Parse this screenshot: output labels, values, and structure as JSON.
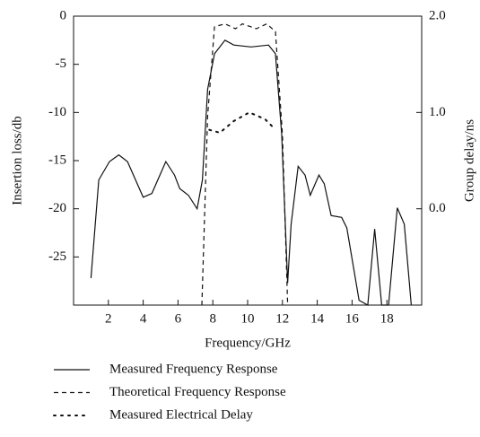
{
  "chart_data": {
    "type": "line",
    "xlabel": "Frequency/GHz",
    "ylabel": "Insertion loss/db",
    "y2label": "Group delay/ns",
    "xlim": [
      0,
      20
    ],
    "xticks": [
      2,
      4,
      6,
      8,
      10,
      12,
      14,
      16,
      18
    ],
    "ylim": [
      -30,
      0
    ],
    "yticks": [
      0,
      -5,
      -10,
      -15,
      -20,
      -25
    ],
    "y2lim": [
      -1,
      2
    ],
    "y2ticks": [
      {
        "value": 0,
        "label": "0.0"
      },
      {
        "value": 1,
        "label": "1.0"
      },
      {
        "value": 2,
        "label": "2.0"
      }
    ],
    "series": [
      {
        "name": "Measured Frequency Response",
        "color": "#111111",
        "line_style": "solid",
        "x": [
          1.0,
          1.45,
          2.06,
          2.6,
          3.1,
          4.0,
          4.5,
          5.3,
          5.8,
          6.1,
          6.6,
          7.1,
          7.4,
          7.7,
          8.1,
          8.7,
          9.2,
          10.2,
          11.2,
          11.6,
          11.96,
          12.3,
          12.5,
          12.9,
          13.3,
          13.6,
          14.1,
          14.4,
          14.8,
          15.4,
          15.7,
          16.4,
          16.9,
          17.3,
          17.7,
          18.1,
          18.6,
          19.0,
          19.4
        ],
        "values": [
          -27.2,
          -17,
          -15.1,
          -14.4,
          -15.1,
          -18.8,
          -18.4,
          -15.1,
          -16.5,
          -17.9,
          -18.6,
          -20,
          -17,
          -7.6,
          -3.9,
          -2.5,
          -3,
          -3.2,
          -3,
          -3.9,
          -12.3,
          -27.7,
          -21.6,
          -15.6,
          -16.5,
          -18.6,
          -16.5,
          -17.4,
          -20.7,
          -20.9,
          -22,
          -29.5,
          -30,
          -22.1,
          -30,
          -30,
          -19.9,
          -21.6,
          -30
        ]
      },
      {
        "name": "Theoretical Frequency Response",
        "color": "#111111",
        "line_style": "dashed",
        "x": [
          7.37,
          7.7,
          8.1,
          8.7,
          9.3,
          9.7,
          10.5,
          11.1,
          11.6,
          12.0,
          12.3
        ],
        "values": [
          -30,
          -10.4,
          -1.1,
          -0.8,
          -1.3,
          -0.8,
          -1.3,
          -0.8,
          -1.6,
          -12.3,
          -30
        ]
      },
      {
        "name": "Measured Electrical Delay",
        "color": "#111111",
        "line_style": "dotted",
        "axis": "y2",
        "x": [
          7.8,
          8.4,
          9.2,
          10.1,
          11.0,
          11.5
        ],
        "values": [
          0.82,
          0.79,
          0.91,
          1.0,
          0.93,
          0.84
        ]
      }
    ]
  }
}
